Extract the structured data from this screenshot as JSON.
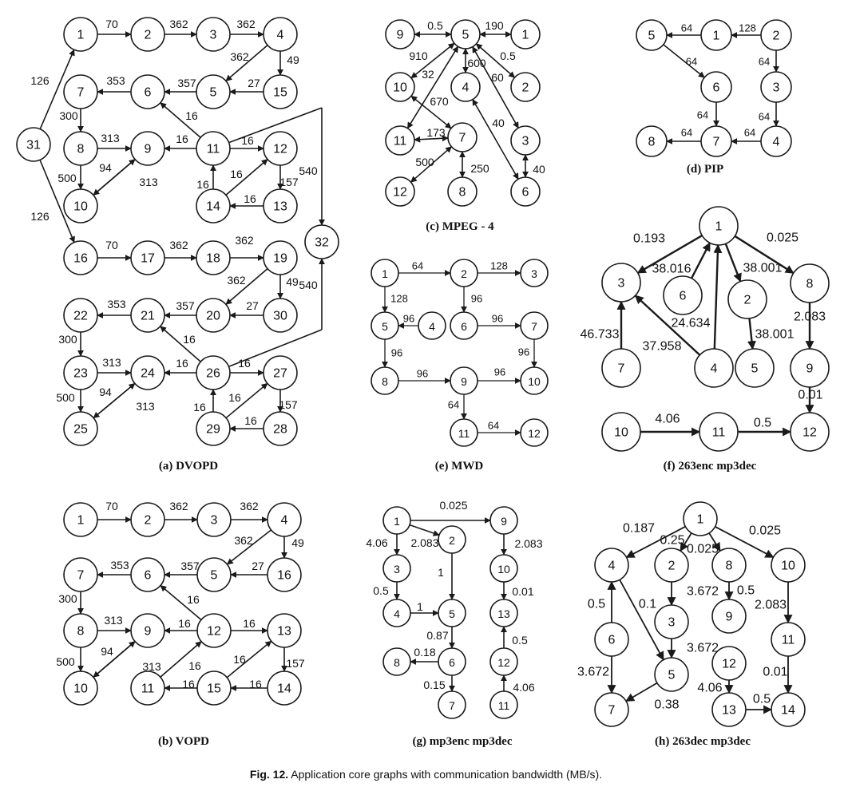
{
  "caption": {
    "label": "Fig. 12.",
    "text": "Application core graphs with communication bandwidth (MB/s)."
  },
  "panels": [
    {
      "id": "a",
      "title": "(a) DVOPD",
      "nodes": [
        "1",
        "2",
        "3",
        "4",
        "5",
        "6",
        "7",
        "8",
        "9",
        "10",
        "11",
        "12",
        "13",
        "14",
        "15",
        "16",
        "17",
        "18",
        "19",
        "20",
        "21",
        "22",
        "23",
        "24",
        "25",
        "26",
        "27",
        "28",
        "29",
        "30",
        "31",
        "32"
      ],
      "edges": [
        {
          "from": "1",
          "to": "2",
          "label": "70"
        },
        {
          "from": "2",
          "to": "3",
          "label": "362"
        },
        {
          "from": "3",
          "to": "4",
          "label": "362"
        },
        {
          "from": "4",
          "to": "5",
          "label": "362"
        },
        {
          "from": "4",
          "to": "15",
          "label": "49"
        },
        {
          "from": "15",
          "to": "5",
          "label": "27"
        },
        {
          "from": "5",
          "to": "6",
          "label": "357"
        },
        {
          "from": "6",
          "to": "7",
          "label": "353"
        },
        {
          "from": "7",
          "to": "8",
          "label": "300"
        },
        {
          "from": "8",
          "to": "9",
          "label": "313"
        },
        {
          "from": "8",
          "to": "10",
          "label": "500"
        },
        {
          "from": "10",
          "to": "9",
          "label": "94"
        },
        {
          "from": "9",
          "to": "10",
          "label": "313"
        },
        {
          "from": "11",
          "to": "6",
          "label": "16"
        },
        {
          "from": "11",
          "to": "9",
          "label": "16"
        },
        {
          "from": "11",
          "to": "12",
          "label": "16"
        },
        {
          "from": "12",
          "to": "13",
          "label": "157"
        },
        {
          "from": "13",
          "to": "14",
          "label": "16"
        },
        {
          "from": "14",
          "to": "11",
          "label": "16"
        },
        {
          "from": "14",
          "to": "12",
          "label": "16"
        },
        {
          "from": "11",
          "to": "32",
          "label": "540"
        },
        {
          "from": "31",
          "to": "1",
          "label": "126"
        },
        {
          "from": "31",
          "to": "16",
          "label": "126"
        },
        {
          "from": "16",
          "to": "17",
          "label": "70"
        },
        {
          "from": "17",
          "to": "18",
          "label": "362"
        },
        {
          "from": "18",
          "to": "19",
          "label": "362"
        },
        {
          "from": "19",
          "to": "20",
          "label": "362"
        },
        {
          "from": "19",
          "to": "30",
          "label": "49"
        },
        {
          "from": "30",
          "to": "20",
          "label": "27"
        },
        {
          "from": "20",
          "to": "21",
          "label": "357"
        },
        {
          "from": "21",
          "to": "22",
          "label": "353"
        },
        {
          "from": "22",
          "to": "23",
          "label": "300"
        },
        {
          "from": "23",
          "to": "24",
          "label": "313"
        },
        {
          "from": "23",
          "to": "25",
          "label": "500"
        },
        {
          "from": "25",
          "to": "24",
          "label": "94"
        },
        {
          "from": "24",
          "to": "25",
          "label": "313"
        },
        {
          "from": "26",
          "to": "21",
          "label": "16"
        },
        {
          "from": "26",
          "to": "24",
          "label": "16"
        },
        {
          "from": "26",
          "to": "27",
          "label": "16"
        },
        {
          "from": "27",
          "to": "28",
          "label": "157"
        },
        {
          "from": "28",
          "to": "29",
          "label": "16"
        },
        {
          "from": "29",
          "to": "26",
          "label": "16"
        },
        {
          "from": "29",
          "to": "27",
          "label": "16"
        },
        {
          "from": "26",
          "to": "32",
          "label": "540"
        }
      ]
    },
    {
      "id": "b",
      "title": "(b) VOPD",
      "nodes": [
        "1",
        "2",
        "3",
        "4",
        "5",
        "6",
        "7",
        "8",
        "9",
        "10",
        "11",
        "12",
        "13",
        "14",
        "15",
        "16"
      ],
      "edges": [
        {
          "from": "1",
          "to": "2",
          "label": "70"
        },
        {
          "from": "2",
          "to": "3",
          "label": "362"
        },
        {
          "from": "3",
          "to": "4",
          "label": "362"
        },
        {
          "from": "4",
          "to": "5",
          "label": "362"
        },
        {
          "from": "4",
          "to": "16",
          "label": "49"
        },
        {
          "from": "16",
          "to": "5",
          "label": "27"
        },
        {
          "from": "5",
          "to": "6",
          "label": "357"
        },
        {
          "from": "6",
          "to": "7",
          "label": "353"
        },
        {
          "from": "7",
          "to": "8",
          "label": "300"
        },
        {
          "from": "8",
          "to": "9",
          "label": "313"
        },
        {
          "from": "8",
          "to": "10",
          "label": "500"
        },
        {
          "from": "10",
          "to": "9",
          "label": "94"
        },
        {
          "from": "9",
          "to": "10",
          "label": "313"
        },
        {
          "from": "12",
          "to": "6",
          "label": "16"
        },
        {
          "from": "12",
          "to": "9",
          "label": "16"
        },
        {
          "from": "12",
          "to": "13",
          "label": "16"
        },
        {
          "from": "13",
          "to": "14",
          "label": "157"
        },
        {
          "from": "14",
          "to": "15",
          "label": "16"
        },
        {
          "from": "15",
          "to": "11",
          "label": "16"
        },
        {
          "from": "11",
          "to": "12",
          "label": "16"
        },
        {
          "from": "15",
          "to": "13",
          "label": "16"
        }
      ]
    },
    {
      "id": "c",
      "title": "(c) MPEG - 4",
      "nodes": [
        "1",
        "2",
        "3",
        "4",
        "5",
        "6",
        "7",
        "8",
        "9",
        "10",
        "11",
        "12"
      ],
      "edges": [
        {
          "from": "5",
          "to": "9",
          "label": "0.5",
          "bidir": true
        },
        {
          "from": "5",
          "to": "1",
          "label": "190",
          "bidir": true
        },
        {
          "from": "5",
          "to": "10",
          "label": "910",
          "bidir": true
        },
        {
          "from": "5",
          "to": "4",
          "label": "600",
          "bidir": true
        },
        {
          "from": "5",
          "to": "2",
          "label": "0.5",
          "bidir": true
        },
        {
          "from": "5",
          "to": "11",
          "label": "32",
          "bidir": true
        },
        {
          "from": "5",
          "to": "3",
          "label": "60",
          "bidir": true
        },
        {
          "from": "10",
          "to": "7",
          "label": "670",
          "bidir": true
        },
        {
          "from": "4",
          "to": "6",
          "label": "40",
          "bidir": true
        },
        {
          "from": "11",
          "to": "7",
          "label": "173",
          "bidir": true
        },
        {
          "from": "12",
          "to": "7",
          "label": "500",
          "bidir": true
        },
        {
          "from": "7",
          "to": "8",
          "label": "250",
          "bidir": true
        },
        {
          "from": "3",
          "to": "6",
          "label": "40",
          "bidir": true
        }
      ]
    },
    {
      "id": "d",
      "title": "(d) PIP",
      "nodes": [
        "1",
        "2",
        "3",
        "4",
        "5",
        "6",
        "7",
        "8"
      ],
      "edges": [
        {
          "from": "2",
          "to": "1",
          "label": "128"
        },
        {
          "from": "1",
          "to": "5",
          "label": "64"
        },
        {
          "from": "2",
          "to": "3",
          "label": "64"
        },
        {
          "from": "5",
          "to": "6",
          "label": "64"
        },
        {
          "from": "3",
          "to": "4",
          "label": "64"
        },
        {
          "from": "6",
          "to": "7",
          "label": "64"
        },
        {
          "from": "4",
          "to": "7",
          "label": "64"
        },
        {
          "from": "7",
          "to": "8",
          "label": "64"
        }
      ]
    },
    {
      "id": "e",
      "title": "(e) MWD",
      "nodes": [
        "1",
        "2",
        "3",
        "4",
        "5",
        "6",
        "7",
        "8",
        "9",
        "10",
        "11",
        "12"
      ],
      "edges": [
        {
          "from": "1",
          "to": "2",
          "label": "64"
        },
        {
          "from": "2",
          "to": "3",
          "label": "128"
        },
        {
          "from": "1",
          "to": "5",
          "label": "128"
        },
        {
          "from": "2",
          "to": "6",
          "label": "96"
        },
        {
          "from": "4",
          "to": "5",
          "label": "96"
        },
        {
          "from": "6",
          "to": "7",
          "label": "96"
        },
        {
          "from": "5",
          "to": "8",
          "label": "96"
        },
        {
          "from": "7",
          "to": "10",
          "label": "96"
        },
        {
          "from": "8",
          "to": "9",
          "label": "96"
        },
        {
          "from": "9",
          "to": "10",
          "label": "96"
        },
        {
          "from": "9",
          "to": "11",
          "label": "64"
        },
        {
          "from": "11",
          "to": "12",
          "label": "64"
        }
      ]
    },
    {
      "id": "f",
      "title": "(f) 263enc mp3dec",
      "nodes": [
        "1",
        "2",
        "3",
        "4",
        "5",
        "6",
        "7",
        "8",
        "9",
        "10",
        "11",
        "12"
      ],
      "edges": [
        {
          "from": "1",
          "to": "3",
          "label": "0.193"
        },
        {
          "from": "1",
          "to": "8",
          "label": "0.025"
        },
        {
          "from": "6",
          "to": "1",
          "label": "38.016"
        },
        {
          "from": "1",
          "to": "2",
          "label": "38.001"
        },
        {
          "from": "2",
          "to": "5",
          "label": "38.001"
        },
        {
          "from": "4",
          "to": "1",
          "label": "24.634"
        },
        {
          "from": "4",
          "to": "3",
          "label": "37.958"
        },
        {
          "from": "7",
          "to": "3",
          "label": "46.733"
        },
        {
          "from": "8",
          "to": "9",
          "label": "2.083"
        },
        {
          "from": "9",
          "to": "12",
          "label": "0.01"
        },
        {
          "from": "10",
          "to": "11",
          "label": "4.06"
        },
        {
          "from": "11",
          "to": "12",
          "label": "0.5"
        }
      ]
    },
    {
      "id": "g",
      "title": "(g) mp3enc mp3dec",
      "nodes": [
        "1",
        "2",
        "3",
        "4",
        "5",
        "6",
        "7",
        "8",
        "9",
        "10",
        "11",
        "12",
        "13"
      ],
      "edges": [
        {
          "from": "1",
          "to": "9",
          "label": "0.025"
        },
        {
          "from": "1",
          "to": "3",
          "label": "4.06"
        },
        {
          "from": "1",
          "to": "2",
          "label": "2.083"
        },
        {
          "from": "2",
          "to": "5",
          "label": "1"
        },
        {
          "from": "3",
          "to": "4",
          "label": "0.5"
        },
        {
          "from": "4",
          "to": "5",
          "label": "1"
        },
        {
          "from": "5",
          "to": "6",
          "label": "0.87"
        },
        {
          "from": "6",
          "to": "8",
          "label": "0.18"
        },
        {
          "from": "6",
          "to": "7",
          "label": "0.15"
        },
        {
          "from": "9",
          "to": "10",
          "label": "2.083"
        },
        {
          "from": "10",
          "to": "13",
          "label": "0.01"
        },
        {
          "from": "12",
          "to": "13",
          "label": "0.5"
        },
        {
          "from": "11",
          "to": "12",
          "label": "4.06"
        }
      ]
    },
    {
      "id": "h",
      "title": "(h) 263dec mp3dec",
      "nodes": [
        "1",
        "2",
        "3",
        "4",
        "5",
        "6",
        "7",
        "8",
        "9",
        "10",
        "11",
        "12",
        "13",
        "14"
      ],
      "edges": [
        {
          "from": "1",
          "to": "4",
          "label": "0.187"
        },
        {
          "from": "1",
          "to": "2",
          "label": "0.25"
        },
        {
          "from": "1",
          "to": "8",
          "label": "0.025"
        },
        {
          "from": "1",
          "to": "10",
          "label": "0.025"
        },
        {
          "from": "2",
          "to": "3",
          "label": "3.672"
        },
        {
          "from": "8",
          "to": "9",
          "label": "0.5"
        },
        {
          "from": "10",
          "to": "11",
          "label": "2.083"
        },
        {
          "from": "6",
          "to": "4",
          "label": "0.5"
        },
        {
          "from": "4",
          "to": "5",
          "label": "0.1"
        },
        {
          "from": "3",
          "to": "5",
          "label": "3.672"
        },
        {
          "from": "6",
          "to": "7",
          "label": "3.672"
        },
        {
          "from": "5",
          "to": "7",
          "label": "0.38"
        },
        {
          "from": "12",
          "to": "13",
          "label": "4.06"
        },
        {
          "from": "13",
          "to": "14",
          "label": "0.5"
        },
        {
          "from": "11",
          "to": "14",
          "label": "0.01"
        }
      ]
    }
  ]
}
